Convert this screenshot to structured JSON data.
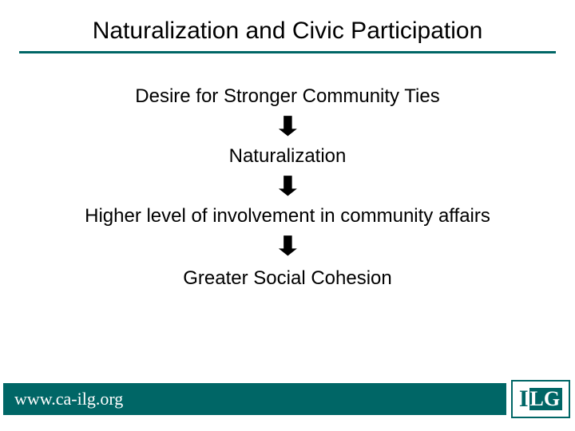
{
  "title": "Naturalization and Civic Participation",
  "flow": {
    "type": "flowchart",
    "arrow_glyph": "⬇",
    "steps": [
      "Desire for Stronger Community Ties",
      "Naturalization",
      "Higher level of involvement in community affairs",
      "Greater Social Cohesion"
    ],
    "step_fontsize": 24,
    "arrow_fontsize": 32,
    "text_color": "#000000"
  },
  "footer": {
    "url": "www.ca-ilg.org",
    "bar_color": "#006666",
    "text_color": "#ffffff",
    "url_fontsize": 22
  },
  "logo": {
    "letter_i": "I",
    "letters_lg": "LG",
    "accent_color": "#006666",
    "bg_color": "#ffffff"
  },
  "colors": {
    "accent": "#006666",
    "background": "#ffffff",
    "text": "#000000"
  },
  "title_style": {
    "fontsize": 30,
    "underline_color": "#006666",
    "underline_thickness": 3
  }
}
